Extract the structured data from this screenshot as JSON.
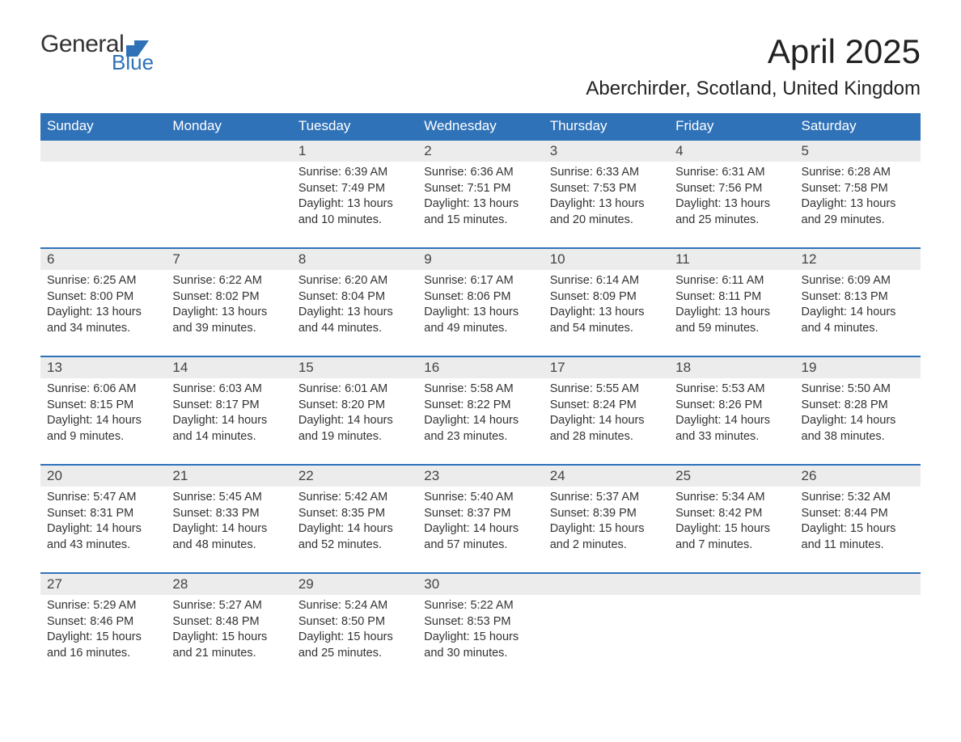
{
  "logo": {
    "word1": "General",
    "word2": "Blue",
    "icon_color": "#2f72b8",
    "text_color": "#333333"
  },
  "title": "April 2025",
  "subtitle": "Aberchirder, Scotland, United Kingdom",
  "colors": {
    "header_bg": "#2f72b8",
    "header_text": "#ffffff",
    "daynum_bg": "#ececec",
    "body_text": "#333333",
    "week_border": "#2f72b8",
    "page_bg": "#ffffff"
  },
  "typography": {
    "title_fontsize": 42,
    "subtitle_fontsize": 24,
    "dow_fontsize": 17,
    "daynum_fontsize": 17,
    "body_fontsize": 14.5
  },
  "dow": [
    "Sunday",
    "Monday",
    "Tuesday",
    "Wednesday",
    "Thursday",
    "Friday",
    "Saturday"
  ],
  "weeks": [
    [
      {
        "n": "",
        "sunrise": "",
        "sunset": "",
        "daylight": ""
      },
      {
        "n": "",
        "sunrise": "",
        "sunset": "",
        "daylight": ""
      },
      {
        "n": "1",
        "sunrise": "Sunrise: 6:39 AM",
        "sunset": "Sunset: 7:49 PM",
        "daylight": "Daylight: 13 hours and 10 minutes."
      },
      {
        "n": "2",
        "sunrise": "Sunrise: 6:36 AM",
        "sunset": "Sunset: 7:51 PM",
        "daylight": "Daylight: 13 hours and 15 minutes."
      },
      {
        "n": "3",
        "sunrise": "Sunrise: 6:33 AM",
        "sunset": "Sunset: 7:53 PM",
        "daylight": "Daylight: 13 hours and 20 minutes."
      },
      {
        "n": "4",
        "sunrise": "Sunrise: 6:31 AM",
        "sunset": "Sunset: 7:56 PM",
        "daylight": "Daylight: 13 hours and 25 minutes."
      },
      {
        "n": "5",
        "sunrise": "Sunrise: 6:28 AM",
        "sunset": "Sunset: 7:58 PM",
        "daylight": "Daylight: 13 hours and 29 minutes."
      }
    ],
    [
      {
        "n": "6",
        "sunrise": "Sunrise: 6:25 AM",
        "sunset": "Sunset: 8:00 PM",
        "daylight": "Daylight: 13 hours and 34 minutes."
      },
      {
        "n": "7",
        "sunrise": "Sunrise: 6:22 AM",
        "sunset": "Sunset: 8:02 PM",
        "daylight": "Daylight: 13 hours and 39 minutes."
      },
      {
        "n": "8",
        "sunrise": "Sunrise: 6:20 AM",
        "sunset": "Sunset: 8:04 PM",
        "daylight": "Daylight: 13 hours and 44 minutes."
      },
      {
        "n": "9",
        "sunrise": "Sunrise: 6:17 AM",
        "sunset": "Sunset: 8:06 PM",
        "daylight": "Daylight: 13 hours and 49 minutes."
      },
      {
        "n": "10",
        "sunrise": "Sunrise: 6:14 AM",
        "sunset": "Sunset: 8:09 PM",
        "daylight": "Daylight: 13 hours and 54 minutes."
      },
      {
        "n": "11",
        "sunrise": "Sunrise: 6:11 AM",
        "sunset": "Sunset: 8:11 PM",
        "daylight": "Daylight: 13 hours and 59 minutes."
      },
      {
        "n": "12",
        "sunrise": "Sunrise: 6:09 AM",
        "sunset": "Sunset: 8:13 PM",
        "daylight": "Daylight: 14 hours and 4 minutes."
      }
    ],
    [
      {
        "n": "13",
        "sunrise": "Sunrise: 6:06 AM",
        "sunset": "Sunset: 8:15 PM",
        "daylight": "Daylight: 14 hours and 9 minutes."
      },
      {
        "n": "14",
        "sunrise": "Sunrise: 6:03 AM",
        "sunset": "Sunset: 8:17 PM",
        "daylight": "Daylight: 14 hours and 14 minutes."
      },
      {
        "n": "15",
        "sunrise": "Sunrise: 6:01 AM",
        "sunset": "Sunset: 8:20 PM",
        "daylight": "Daylight: 14 hours and 19 minutes."
      },
      {
        "n": "16",
        "sunrise": "Sunrise: 5:58 AM",
        "sunset": "Sunset: 8:22 PM",
        "daylight": "Daylight: 14 hours and 23 minutes."
      },
      {
        "n": "17",
        "sunrise": "Sunrise: 5:55 AM",
        "sunset": "Sunset: 8:24 PM",
        "daylight": "Daylight: 14 hours and 28 minutes."
      },
      {
        "n": "18",
        "sunrise": "Sunrise: 5:53 AM",
        "sunset": "Sunset: 8:26 PM",
        "daylight": "Daylight: 14 hours and 33 minutes."
      },
      {
        "n": "19",
        "sunrise": "Sunrise: 5:50 AM",
        "sunset": "Sunset: 8:28 PM",
        "daylight": "Daylight: 14 hours and 38 minutes."
      }
    ],
    [
      {
        "n": "20",
        "sunrise": "Sunrise: 5:47 AM",
        "sunset": "Sunset: 8:31 PM",
        "daylight": "Daylight: 14 hours and 43 minutes."
      },
      {
        "n": "21",
        "sunrise": "Sunrise: 5:45 AM",
        "sunset": "Sunset: 8:33 PM",
        "daylight": "Daylight: 14 hours and 48 minutes."
      },
      {
        "n": "22",
        "sunrise": "Sunrise: 5:42 AM",
        "sunset": "Sunset: 8:35 PM",
        "daylight": "Daylight: 14 hours and 52 minutes."
      },
      {
        "n": "23",
        "sunrise": "Sunrise: 5:40 AM",
        "sunset": "Sunset: 8:37 PM",
        "daylight": "Daylight: 14 hours and 57 minutes."
      },
      {
        "n": "24",
        "sunrise": "Sunrise: 5:37 AM",
        "sunset": "Sunset: 8:39 PM",
        "daylight": "Daylight: 15 hours and 2 minutes."
      },
      {
        "n": "25",
        "sunrise": "Sunrise: 5:34 AM",
        "sunset": "Sunset: 8:42 PM",
        "daylight": "Daylight: 15 hours and 7 minutes."
      },
      {
        "n": "26",
        "sunrise": "Sunrise: 5:32 AM",
        "sunset": "Sunset: 8:44 PM",
        "daylight": "Daylight: 15 hours and 11 minutes."
      }
    ],
    [
      {
        "n": "27",
        "sunrise": "Sunrise: 5:29 AM",
        "sunset": "Sunset: 8:46 PM",
        "daylight": "Daylight: 15 hours and 16 minutes."
      },
      {
        "n": "28",
        "sunrise": "Sunrise: 5:27 AM",
        "sunset": "Sunset: 8:48 PM",
        "daylight": "Daylight: 15 hours and 21 minutes."
      },
      {
        "n": "29",
        "sunrise": "Sunrise: 5:24 AM",
        "sunset": "Sunset: 8:50 PM",
        "daylight": "Daylight: 15 hours and 25 minutes."
      },
      {
        "n": "30",
        "sunrise": "Sunrise: 5:22 AM",
        "sunset": "Sunset: 8:53 PM",
        "daylight": "Daylight: 15 hours and 30 minutes."
      },
      {
        "n": "",
        "sunrise": "",
        "sunset": "",
        "daylight": ""
      },
      {
        "n": "",
        "sunrise": "",
        "sunset": "",
        "daylight": ""
      },
      {
        "n": "",
        "sunrise": "",
        "sunset": "",
        "daylight": ""
      }
    ]
  ]
}
